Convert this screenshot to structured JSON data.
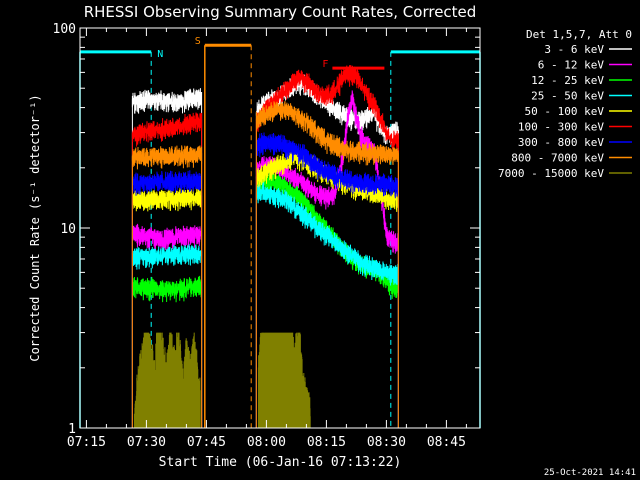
{
  "chart_data": {
    "type": "line",
    "title": "RHESSI Observing Summary Count Rates, Corrected",
    "xlabel": "Start Time (06-Jan-16 07:13:22)",
    "ylabel": "Corrected Count Rate (s⁻¹ detector⁻¹)",
    "x_unit": "minutes after 07:00 UT",
    "xlim": [
      73.4,
      173.4
    ],
    "ylim": [
      1,
      100
    ],
    "yscale": "log",
    "x_ticks": [
      {
        "value": 75,
        "label": "07:15"
      },
      {
        "value": 90,
        "label": "07:30"
      },
      {
        "value": 105,
        "label": "07:45"
      },
      {
        "value": 120,
        "label": "08:00"
      },
      {
        "value": 135,
        "label": "08:15"
      },
      {
        "value": 150,
        "label": "08:30"
      },
      {
        "value": 165,
        "label": "08:45"
      }
    ],
    "y_ticks": [
      {
        "value": 1,
        "label": "1"
      },
      {
        "value": 10,
        "label": "10"
      },
      {
        "value": 100,
        "label": "100"
      }
    ],
    "legend_header": "Det 1,5,7, Att 0",
    "legend_position": "right-outside",
    "segments": [
      [
        86.5,
        103.8
      ],
      [
        117.5,
        153.0
      ]
    ],
    "series": [
      {
        "name": "3 - 6 keV",
        "color": "#ffffff",
        "points": [
          [
            86.5,
            44
          ],
          [
            88,
            43
          ],
          [
            90,
            45
          ],
          [
            92,
            44
          ],
          [
            95,
            44
          ],
          [
            98,
            43
          ],
          [
            101,
            45
          ],
          [
            103.8,
            46
          ],
          [
            117.5,
            38
          ],
          [
            119,
            42
          ],
          [
            121,
            44
          ],
          [
            123,
            46
          ],
          [
            125,
            49
          ],
          [
            127,
            53
          ],
          [
            129,
            54
          ],
          [
            131,
            50
          ],
          [
            133,
            46
          ],
          [
            135,
            43
          ],
          [
            137,
            40
          ],
          [
            139,
            38
          ],
          [
            141,
            36
          ],
          [
            143,
            35
          ],
          [
            145,
            36
          ],
          [
            147,
            38
          ],
          [
            148.5,
            33
          ],
          [
            150,
            30
          ],
          [
            151.5,
            30
          ],
          [
            153,
            31
          ]
        ]
      },
      {
        "name": "6 - 12 keV",
        "color": "#ff00ff",
        "points": [
          [
            86.5,
            9.5
          ],
          [
            90,
            9.2
          ],
          [
            95,
            9.0
          ],
          [
            100,
            9.3
          ],
          [
            103.8,
            9.4
          ],
          [
            117.5,
            20
          ],
          [
            119,
            21
          ],
          [
            121,
            21
          ],
          [
            123,
            20
          ],
          [
            125,
            19
          ],
          [
            127,
            18
          ],
          [
            129,
            17
          ],
          [
            131,
            16
          ],
          [
            133,
            15
          ],
          [
            135,
            14.5
          ],
          [
            137,
            14.8
          ],
          [
            139,
            22
          ],
          [
            140.5,
            38
          ],
          [
            141.5,
            45
          ],
          [
            142.5,
            36
          ],
          [
            143.5,
            30
          ],
          [
            144.5,
            27
          ],
          [
            145.5,
            26
          ],
          [
            147,
            24
          ],
          [
            148.5,
            16
          ],
          [
            150,
            9.5
          ],
          [
            151.5,
            8.8
          ],
          [
            153,
            8.5
          ]
        ]
      },
      {
        "name": "12 - 25 keV",
        "color": "#00ff00",
        "points": [
          [
            86.5,
            5.2
          ],
          [
            90,
            5.1
          ],
          [
            95,
            5.0
          ],
          [
            100,
            5.1
          ],
          [
            103.8,
            5.2
          ],
          [
            117.5,
            16
          ],
          [
            119,
            17
          ],
          [
            121,
            17.5
          ],
          [
            123,
            17
          ],
          [
            125,
            16
          ],
          [
            127,
            15
          ],
          [
            129,
            14
          ],
          [
            131,
            12.5
          ],
          [
            133,
            11
          ],
          [
            135,
            10
          ],
          [
            137,
            9
          ],
          [
            139,
            8
          ],
          [
            141,
            7.2
          ],
          [
            143,
            6.8
          ],
          [
            145,
            6.5
          ],
          [
            147,
            6.3
          ],
          [
            149,
            5.7
          ],
          [
            151,
            5.2
          ],
          [
            153,
            5.0
          ]
        ]
      },
      {
        "name": "25 - 50 keV",
        "color": "#00ffff",
        "points": [
          [
            86.5,
            7.2
          ],
          [
            90,
            7.3
          ],
          [
            95,
            7.4
          ],
          [
            100,
            7.5
          ],
          [
            103.8,
            7.6
          ],
          [
            117.5,
            15
          ],
          [
            119,
            15.5
          ],
          [
            121,
            15
          ],
          [
            123,
            14.5
          ],
          [
            125,
            14
          ],
          [
            127,
            13
          ],
          [
            129,
            12
          ],
          [
            131,
            11
          ],
          [
            133,
            10
          ],
          [
            135,
            9.5
          ],
          [
            137,
            8.8
          ],
          [
            139,
            8
          ],
          [
            141,
            7.5
          ],
          [
            143,
            7
          ],
          [
            145,
            6.6
          ],
          [
            147,
            6.4
          ],
          [
            149,
            6.2
          ],
          [
            151,
            6.0
          ],
          [
            153,
            6.0
          ]
        ]
      },
      {
        "name": "50 - 100 keV",
        "color": "#ffff00",
        "points": [
          [
            86.5,
            14
          ],
          [
            90,
            14
          ],
          [
            95,
            14.2
          ],
          [
            100,
            14.3
          ],
          [
            103.8,
            14.5
          ],
          [
            117.5,
            18
          ],
          [
            119,
            19
          ],
          [
            121,
            20
          ],
          [
            123,
            21
          ],
          [
            125,
            22
          ],
          [
            127,
            23
          ],
          [
            129,
            22.5
          ],
          [
            131,
            21
          ],
          [
            133,
            20
          ],
          [
            135,
            19
          ],
          [
            137,
            18
          ],
          [
            139,
            17
          ],
          [
            141,
            16.5
          ],
          [
            143,
            16
          ],
          [
            145,
            15.5
          ],
          [
            147,
            15
          ],
          [
            149,
            14.5
          ],
          [
            151,
            14
          ],
          [
            153,
            14
          ]
        ]
      },
      {
        "name": "100 - 300 keV",
        "color": "#ff0000",
        "points": [
          [
            86.5,
            30
          ],
          [
            88,
            30
          ],
          [
            90,
            31
          ],
          [
            93,
            31.5
          ],
          [
            96,
            32
          ],
          [
            99,
            33
          ],
          [
            101,
            34
          ],
          [
            103.8,
            35
          ],
          [
            117.5,
            34
          ],
          [
            119,
            38
          ],
          [
            121,
            42
          ],
          [
            123,
            46
          ],
          [
            125,
            50
          ],
          [
            127,
            55
          ],
          [
            128.5,
            58
          ],
          [
            130,
            55
          ],
          [
            132,
            50
          ],
          [
            134,
            46
          ],
          [
            136,
            47
          ],
          [
            138,
            53
          ],
          [
            139.5,
            58
          ],
          [
            141,
            60
          ],
          [
            142.5,
            58
          ],
          [
            144,
            52
          ],
          [
            145.5,
            46
          ],
          [
            147,
            42
          ],
          [
            148.5,
            36
          ],
          [
            150,
            30
          ],
          [
            151.5,
            28
          ],
          [
            153,
            28
          ]
        ]
      },
      {
        "name": "300 - 800 keV",
        "color": "#0000ff",
        "points": [
          [
            86.5,
            17
          ],
          [
            90,
            17.2
          ],
          [
            95,
            17.4
          ],
          [
            100,
            17.5
          ],
          [
            103.8,
            17.6
          ],
          [
            117.5,
            26
          ],
          [
            119,
            27
          ],
          [
            121,
            27.5
          ],
          [
            123,
            27
          ],
          [
            125,
            26
          ],
          [
            127,
            25
          ],
          [
            129,
            24
          ],
          [
            131,
            22
          ],
          [
            133,
            20.5
          ],
          [
            135,
            19.5
          ],
          [
            137,
            18.8
          ],
          [
            139,
            18
          ],
          [
            141,
            17.5
          ],
          [
            143,
            17.2
          ],
          [
            145,
            17
          ],
          [
            147,
            17
          ],
          [
            149,
            16.8
          ],
          [
            151,
            16.6
          ],
          [
            153,
            16.5
          ]
        ]
      },
      {
        "name": "800 - 7000 keV",
        "color": "#ff8c00",
        "points": [
          [
            86.5,
            23
          ],
          [
            90,
            23
          ],
          [
            95,
            23.2
          ],
          [
            100,
            23.5
          ],
          [
            103.8,
            23.7
          ],
          [
            117.5,
            35
          ],
          [
            119,
            37
          ],
          [
            121,
            39
          ],
          [
            123,
            40
          ],
          [
            125,
            39.5
          ],
          [
            127,
            38
          ],
          [
            129,
            36
          ],
          [
            131,
            33
          ],
          [
            133,
            30
          ],
          [
            135,
            28
          ],
          [
            137,
            26.5
          ],
          [
            139,
            25.5
          ],
          [
            141,
            25
          ],
          [
            143,
            24.5
          ],
          [
            145,
            24.2
          ],
          [
            147,
            24
          ],
          [
            149,
            23.8
          ],
          [
            151,
            23.6
          ],
          [
            153,
            23.5
          ]
        ]
      },
      {
        "name": "7000 - 15000 keV",
        "color": "#808000",
        "points": [
          [
            87,
            1
          ],
          [
            88,
            1.4
          ],
          [
            89,
            2.0
          ],
          [
            90,
            2.4
          ],
          [
            91,
            2.0
          ],
          [
            92,
            1.6
          ],
          [
            93,
            2.8
          ],
          [
            94,
            2.1
          ],
          [
            95,
            1.5
          ],
          [
            96,
            2.4
          ],
          [
            97,
            1.8
          ],
          [
            98,
            2.5
          ],
          [
            99,
            1.4
          ],
          [
            100,
            2.0
          ],
          [
            101,
            1.6
          ],
          [
            102,
            2.2
          ],
          [
            103.5,
            1.2
          ],
          [
            118,
            1.5
          ],
          [
            119,
            2.6
          ],
          [
            120,
            2.4
          ],
          [
            121,
            2.7
          ],
          [
            122,
            2.2
          ],
          [
            123,
            2.6
          ],
          [
            124,
            2.9
          ],
          [
            125,
            2.3
          ],
          [
            126,
            2.8
          ],
          [
            127,
            1.8
          ],
          [
            128,
            2.6
          ],
          [
            129,
            1.5
          ],
          [
            130,
            1.2
          ],
          [
            131,
            1
          ]
        ]
      }
    ],
    "annotations": [
      {
        "label": "N",
        "color": "#00ffff",
        "kind": "night",
        "intervals": [
          [
            73.4,
            91.2
          ],
          [
            151.1,
            173.4
          ]
        ],
        "bar_level": 76,
        "edge_style": "dashed"
      },
      {
        "label": "S",
        "color": "#ff8c00",
        "kind": "saa",
        "intervals": [
          [
            104.6,
            116.2
          ]
        ],
        "bar_level": 82,
        "edge_style": "dashed"
      },
      {
        "label": "F",
        "color": "#ff0000",
        "kind": "flare",
        "intervals": [
          [
            136.5,
            149.5
          ]
        ],
        "bar_level": 63,
        "edge_style": "none"
      }
    ],
    "grid": false
  },
  "footer": {
    "generated": "25-Oct-2021 14:41"
  }
}
